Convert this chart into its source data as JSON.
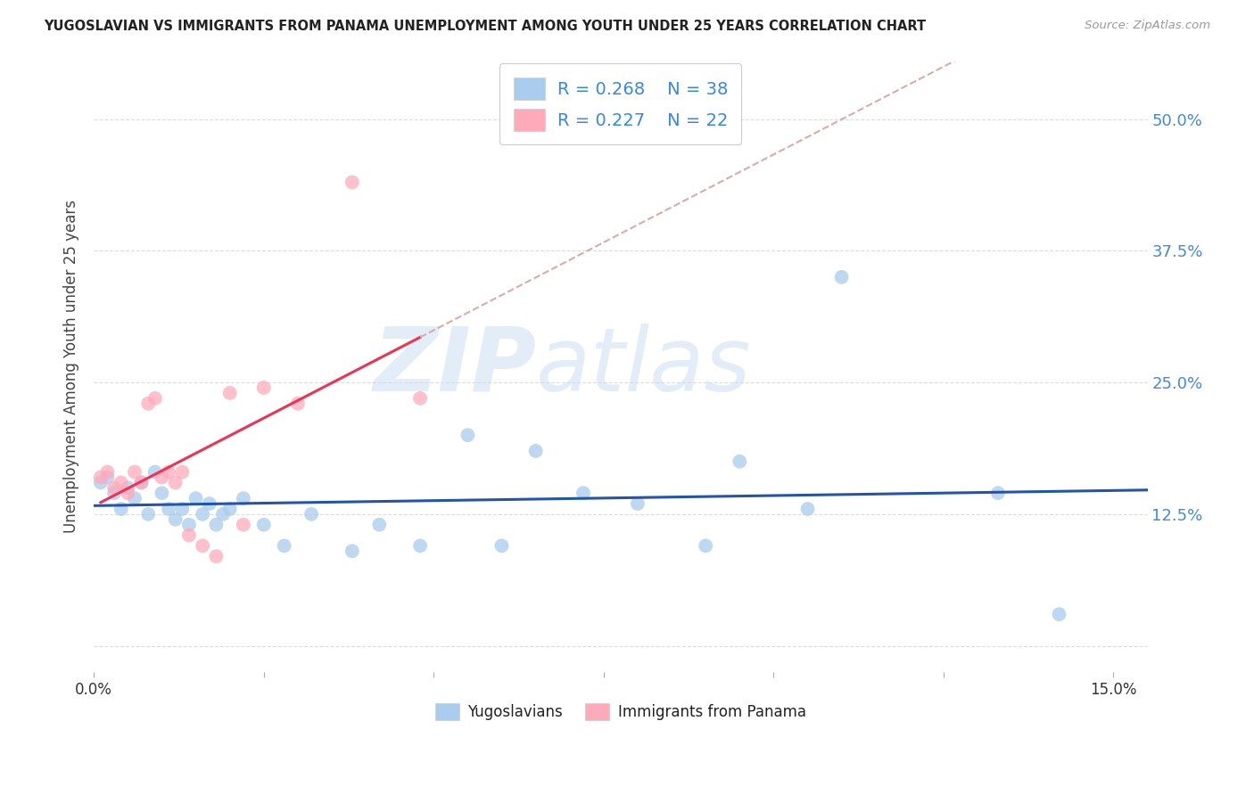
{
  "title": "YUGOSLAVIAN VS IMMIGRANTS FROM PANAMA UNEMPLOYMENT AMONG YOUTH UNDER 25 YEARS CORRELATION CHART",
  "source": "Source: ZipAtlas.com",
  "ylabel": "Unemployment Among Youth under 25 years",
  "xlim": [
    0.0,
    0.155
  ],
  "ylim": [
    -0.025,
    0.555
  ],
  "yticks": [
    0.0,
    0.125,
    0.25,
    0.375,
    0.5
  ],
  "ytick_labels": [
    "",
    "12.5%",
    "25.0%",
    "37.5%",
    "50.0%"
  ],
  "xticks": [
    0.0,
    0.025,
    0.05,
    0.075,
    0.1,
    0.125,
    0.15
  ],
  "xtick_labels": [
    "0.0%",
    "",
    "",
    "",
    "",
    "",
    "15.0%"
  ],
  "r_yugoslavians": "0.268",
  "n_yugoslavians": "38",
  "r_panama": "0.227",
  "n_panama": "22",
  "color_yugoslavians": "#aaccee",
  "color_panama": "#ffaabb",
  "line_color_yugoslavians": "#2255aa",
  "line_color_panama": "#ee3355",
  "line_color_panama_dashed": "#ddaaaa",
  "watermark_zip": "ZIP",
  "watermark_atlas": "atlas",
  "legend_label_1": "Yugoslavians",
  "legend_label_2": "Immigrants from Panama",
  "yugoslavians_x": [
    0.001,
    0.002,
    0.003,
    0.004,
    0.005,
    0.006,
    0.007,
    0.008,
    0.009,
    0.01,
    0.011,
    0.012,
    0.013,
    0.014,
    0.015,
    0.016,
    0.017,
    0.018,
    0.019,
    0.02,
    0.022,
    0.025,
    0.028,
    0.032,
    0.038,
    0.042,
    0.048,
    0.055,
    0.06,
    0.065,
    0.072,
    0.08,
    0.09,
    0.095,
    0.105,
    0.11,
    0.133,
    0.142
  ],
  "yugoslavians_y": [
    0.155,
    0.16,
    0.145,
    0.13,
    0.15,
    0.14,
    0.155,
    0.125,
    0.165,
    0.145,
    0.13,
    0.12,
    0.13,
    0.115,
    0.14,
    0.125,
    0.135,
    0.115,
    0.125,
    0.13,
    0.14,
    0.115,
    0.095,
    0.125,
    0.09,
    0.115,
    0.095,
    0.2,
    0.095,
    0.185,
    0.145,
    0.135,
    0.095,
    0.175,
    0.13,
    0.35,
    0.145,
    0.03
  ],
  "panama_x": [
    0.001,
    0.002,
    0.003,
    0.004,
    0.005,
    0.006,
    0.007,
    0.008,
    0.009,
    0.01,
    0.011,
    0.012,
    0.013,
    0.014,
    0.016,
    0.018,
    0.02,
    0.022,
    0.025,
    0.03,
    0.038,
    0.048
  ],
  "panama_y": [
    0.16,
    0.165,
    0.15,
    0.155,
    0.145,
    0.165,
    0.155,
    0.23,
    0.235,
    0.16,
    0.165,
    0.155,
    0.165,
    0.105,
    0.095,
    0.085,
    0.24,
    0.115,
    0.245,
    0.23,
    0.44,
    0.235
  ],
  "bg_color": "#ffffff",
  "grid_color": "#dddddd"
}
